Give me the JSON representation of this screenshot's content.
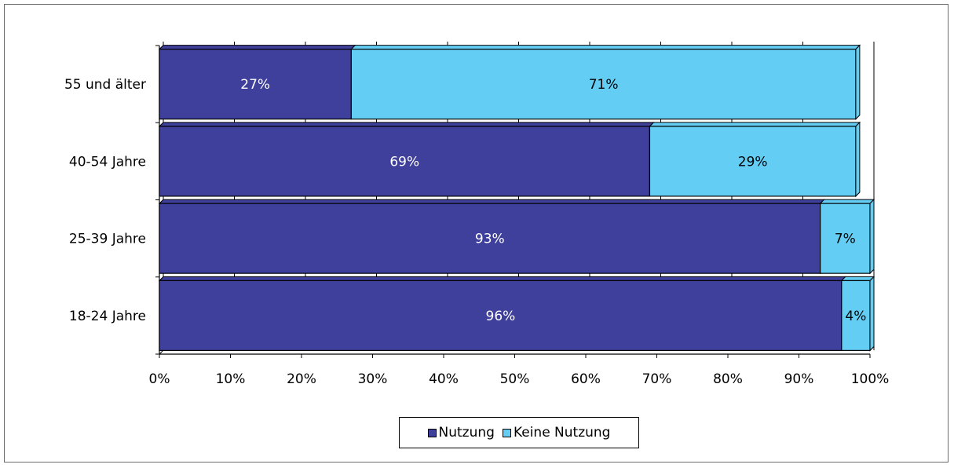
{
  "chart_data": {
    "type": "bar",
    "orientation": "horizontal",
    "stacked": true,
    "categories": [
      "55 und älter",
      "40-54 Jahre",
      "25-39 Jahre",
      "18-24 Jahre"
    ],
    "series": [
      {
        "name": "Nutzung",
        "values": [
          27,
          69,
          93,
          96
        ],
        "labels": [
          "27%",
          "69%",
          "93%",
          "96%"
        ],
        "color": "#3f3f9c"
      },
      {
        "name": "Keine Nutzung",
        "values": [
          71,
          29,
          7,
          4
        ],
        "labels": [
          "71%",
          "29%",
          "7%",
          "4%"
        ],
        "color": "#63cdf4"
      }
    ],
    "xlim": [
      0,
      100
    ],
    "xticks": [
      "0%",
      "10%",
      "20%",
      "30%",
      "40%",
      "50%",
      "60%",
      "70%",
      "80%",
      "90%",
      "100%"
    ],
    "grid": true,
    "legend_position": "bottom",
    "title": "",
    "xlabel": "",
    "ylabel": ""
  }
}
